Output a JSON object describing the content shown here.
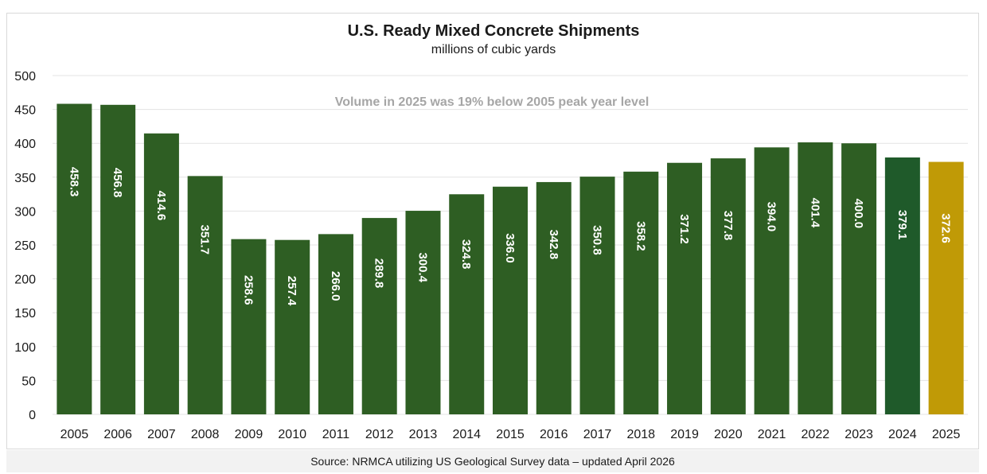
{
  "chart_data": {
    "type": "bar",
    "title": "U.S. Ready Mixed Concrete Shipments",
    "subtitle": "millions of cubic yards",
    "categories": [
      "2005",
      "2006",
      "2007",
      "2008",
      "2009",
      "2010",
      "2011",
      "2012",
      "2013",
      "2014",
      "2015",
      "2016",
      "2017",
      "2018",
      "2019",
      "2020",
      "2021",
      "2022",
      "2023",
      "2024",
      "2025"
    ],
    "values": [
      458.3,
      456.8,
      414.6,
      351.7,
      258.6,
      257.4,
      266.0,
      289.8,
      300.4,
      324.8,
      336.0,
      342.8,
      350.8,
      358.2,
      371.2,
      377.8,
      394.0,
      401.4,
      400.0,
      379.1,
      372.6
    ],
    "value_labels": [
      "458.3",
      "456.8",
      "414.6",
      "351.7",
      "258.6",
      "257.4",
      "266.0",
      "289.8",
      "300.4",
      "324.8",
      "336.0",
      "342.8",
      "350.8",
      "358.2",
      "371.2",
      "377.8",
      "394.0",
      "401.4",
      "400.0",
      "379.1",
      "372.6"
    ],
    "ylim": [
      0,
      500
    ],
    "yticks": [
      "0",
      "50",
      "100",
      "150",
      "200",
      "250",
      "300",
      "350",
      "400",
      "450",
      "500"
    ],
    "grid": true,
    "annotation": "Volume in 2025 was 19% below 2005 peak year level",
    "colors": {
      "default": "#2e5e23",
      "2024": "#1f5a2a",
      "2025": "#c09a06",
      "grid": "#e3e3e3"
    }
  },
  "source": "Source: NRMCA utilizing US Geological Survey data  – updated April  2026"
}
